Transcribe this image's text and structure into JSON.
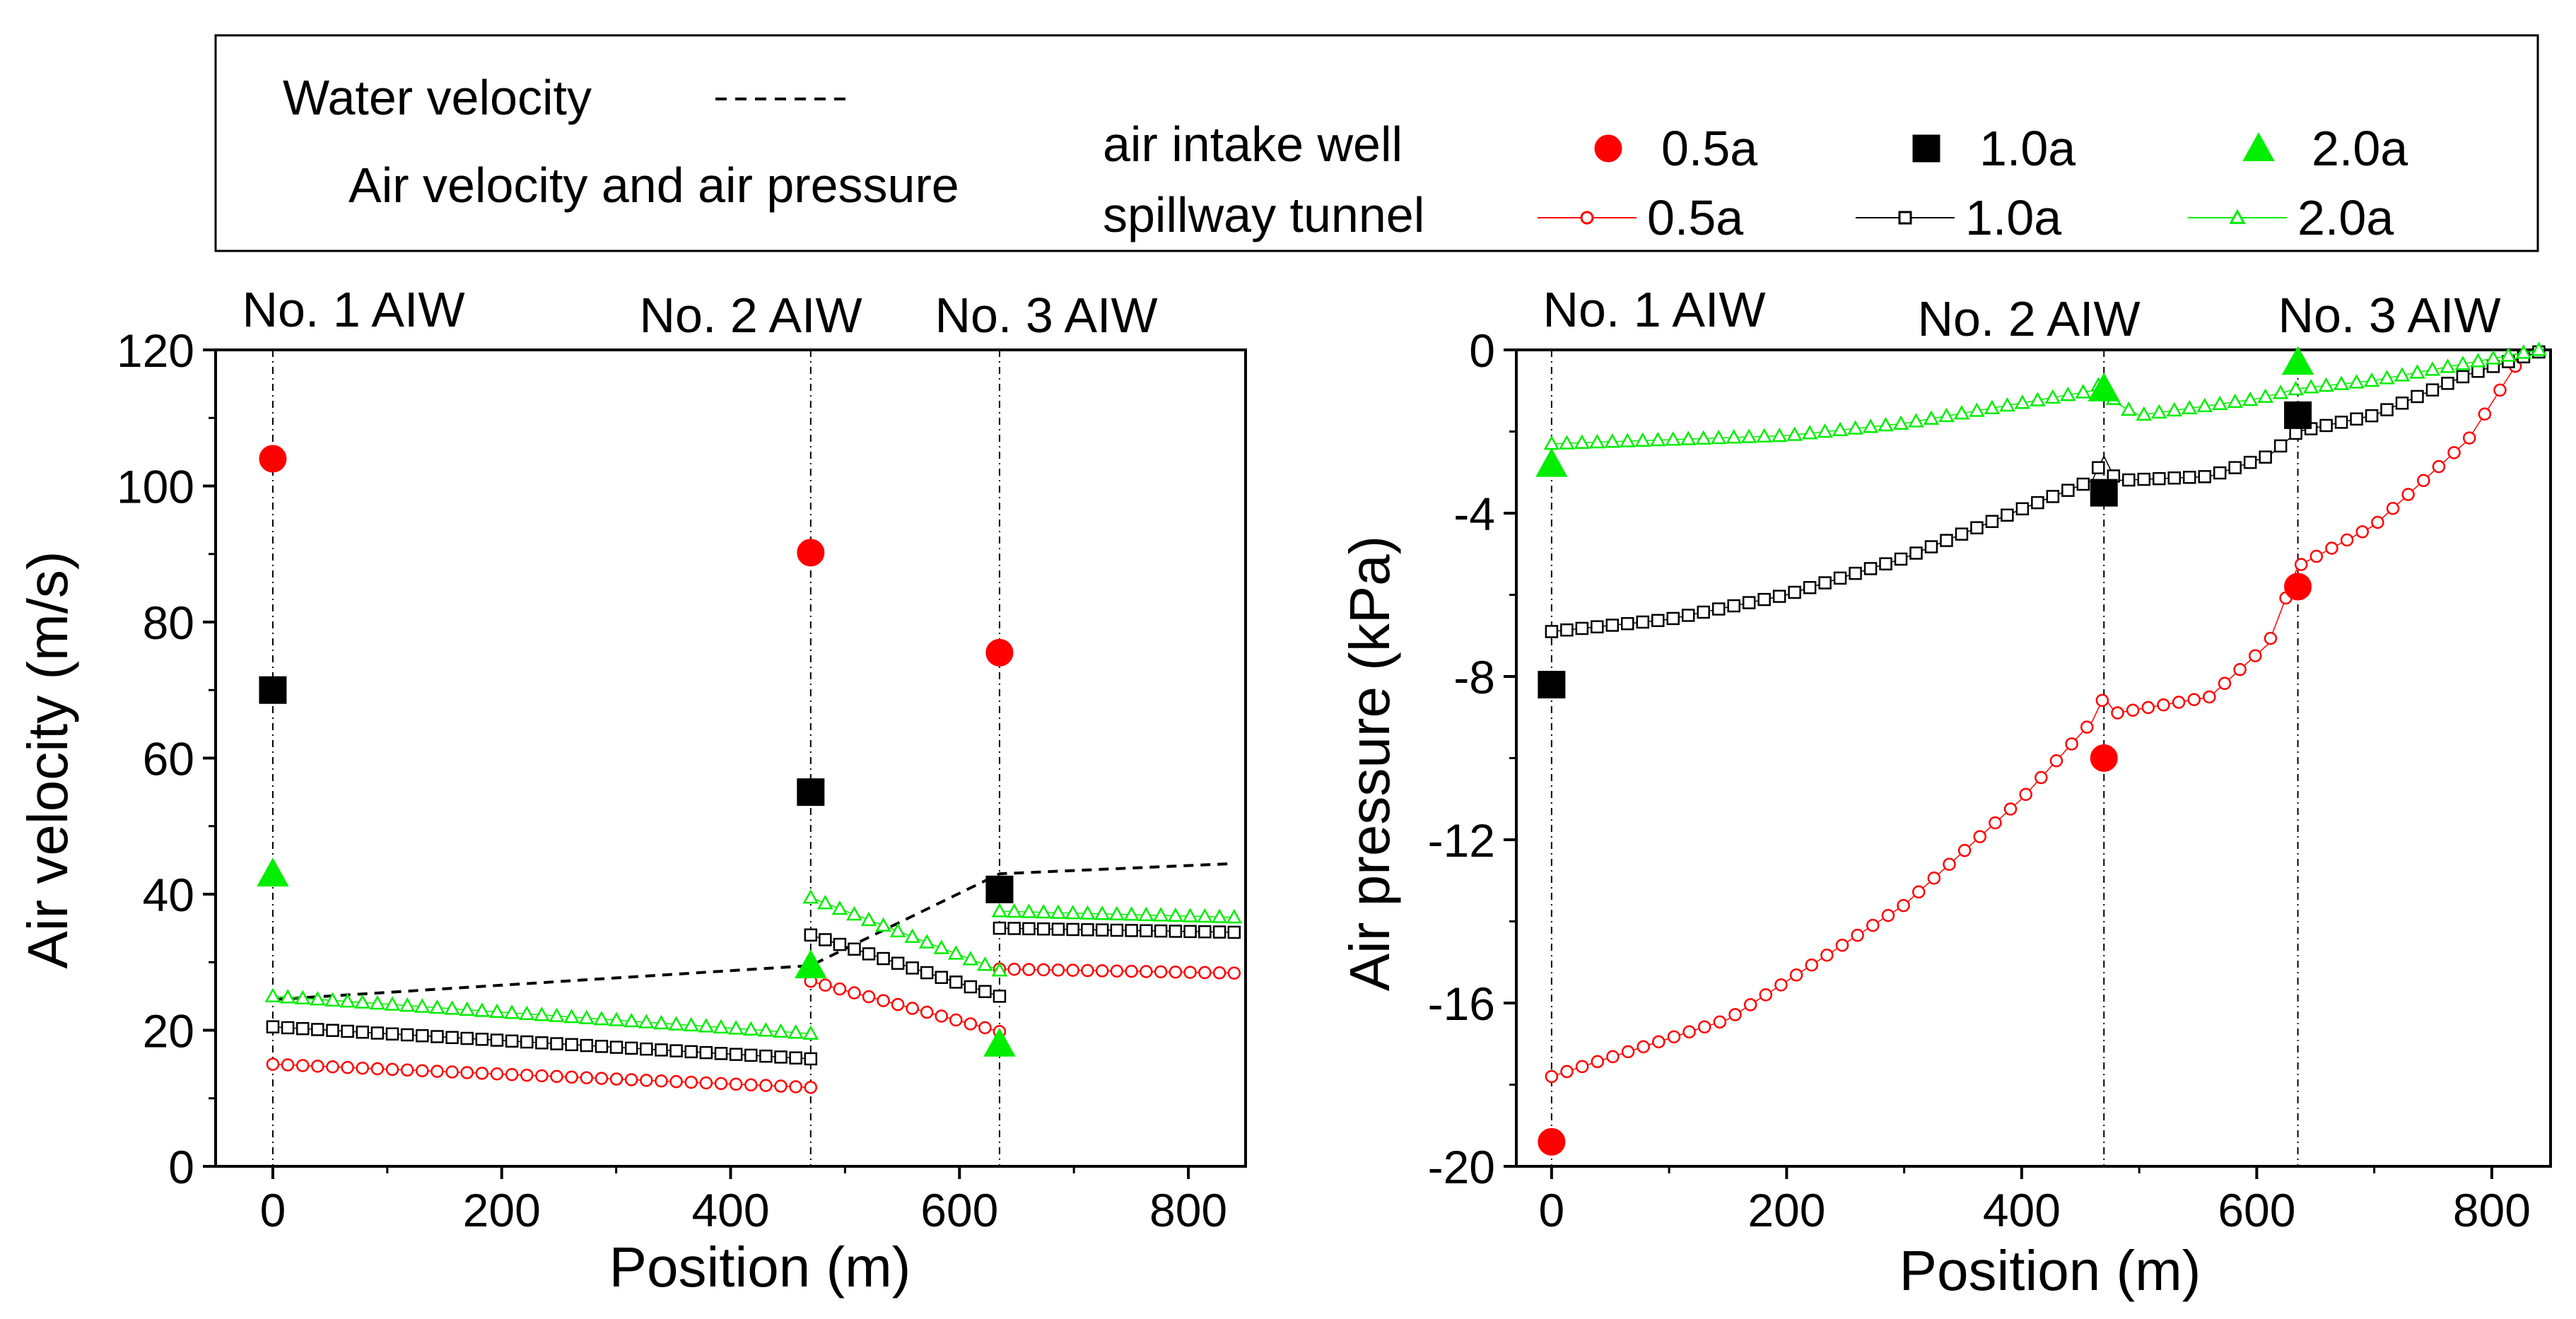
{
  "legend": {
    "water_label": "Water velocity",
    "air_label": "Air velocity and air pressure",
    "row_well": "air intake well",
    "row_tunnel": "spillway tunnel",
    "items": [
      "0.5a",
      "1.0a",
      "2.0a"
    ]
  },
  "colors": {
    "c05": "#ff0000",
    "c10": "#000000",
    "c20": "#00ee00",
    "water": "#000000"
  },
  "chart_data": [
    {
      "type": "scatter",
      "xlabel": "Position (m)",
      "ylabel": "Air velocity (m/s)",
      "xlim": [
        -50,
        850
      ],
      "ylim": [
        0,
        120
      ],
      "xticks": [
        0,
        200,
        400,
        600,
        800
      ],
      "yticks": [
        0,
        20,
        40,
        60,
        80,
        100,
        120
      ],
      "aiw_positions": [
        0,
        470,
        635
      ],
      "aiw_labels": [
        "No. 1 AIW",
        "No. 2 AIW",
        "No. 3 AIW"
      ],
      "water_velocity": {
        "x": [
          0,
          470,
          635,
          840
        ],
        "y": [
          24.5,
          29.5,
          43,
          44.5
        ]
      },
      "well": [
        {
          "name": "0.5a",
          "x": [
            0,
            470,
            635
          ],
          "y": [
            104,
            90.2,
            75.5
          ]
        },
        {
          "name": "1.0a",
          "x": [
            0,
            470,
            635
          ],
          "y": [
            70,
            55,
            40.7
          ]
        },
        {
          "name": "2.0a",
          "x": [
            0,
            470,
            635
          ],
          "y": [
            43,
            29.5,
            18
          ]
        }
      ],
      "tunnel": [
        {
          "name": "0.5a",
          "segments": [
            {
              "x": [
                0,
                470
              ],
              "y": [
                15,
                11.6
              ]
            },
            {
              "x": [
                470,
                635
              ],
              "y": [
                27.2,
                19.8
              ]
            },
            {
              "x": [
                635,
                840
              ],
              "y": [
                29,
                28.4
              ]
            }
          ]
        },
        {
          "name": "1.0a",
          "segments": [
            {
              "x": [
                0,
                470
              ],
              "y": [
                20.5,
                15.8
              ]
            },
            {
              "x": [
                470,
                635
              ],
              "y": [
                34,
                25
              ]
            },
            {
              "x": [
                635,
                840
              ],
              "y": [
                35,
                34.4
              ]
            }
          ]
        },
        {
          "name": "2.0a",
          "segments": [
            {
              "x": [
                0,
                470
              ],
              "y": [
                25,
                19.5
              ]
            },
            {
              "x": [
                470,
                635
              ],
              "y": [
                39.5,
                28.8
              ]
            },
            {
              "x": [
                635,
                840
              ],
              "y": [
                37.5,
                36.6
              ]
            }
          ]
        }
      ]
    },
    {
      "type": "scatter",
      "xlabel": "Position (m)",
      "ylabel": "Air pressure (kPa)",
      "xlim": [
        -30,
        850
      ],
      "ylim": [
        -20,
        0
      ],
      "xticks": [
        0,
        200,
        400,
        600,
        800
      ],
      "yticks": [
        -20,
        -16,
        -12,
        -8,
        -4,
        0
      ],
      "aiw_positions": [
        0,
        470,
        635
      ],
      "aiw_labels": [
        "No. 1 AIW",
        "No. 2 AIW",
        "No. 3 AIW"
      ],
      "well": [
        {
          "name": "0.5a",
          "x": [
            0,
            470,
            635
          ],
          "y": [
            -19.4,
            -10,
            -5.8
          ]
        },
        {
          "name": "1.0a",
          "x": [
            0,
            470,
            635
          ],
          "y": [
            -8.2,
            -3.5,
            -1.6
          ]
        },
        {
          "name": "2.0a",
          "x": [
            0,
            470,
            635
          ],
          "y": [
            -2.8,
            -0.95,
            -0.3
          ]
        }
      ],
      "tunnel": [
        {
          "name": "0.5a",
          "x": [
            0,
            150,
            300,
            400,
            460,
            470,
            480,
            560,
            610,
            635,
            700,
            780,
            820
          ],
          "y": [
            -17.8,
            -16.4,
            -13.6,
            -11,
            -9.1,
            -8.5,
            -8.9,
            -8.5,
            -7.2,
            -5.3,
            -4.3,
            -2.2,
            -0.4
          ]
        },
        {
          "name": "1.0a",
          "x": [
            0,
            100,
            200,
            300,
            400,
            460,
            470,
            480,
            560,
            610,
            635,
            700,
            780,
            840
          ],
          "y": [
            -6.9,
            -6.6,
            -6,
            -5.1,
            -3.9,
            -3.2,
            -2.6,
            -3.2,
            -3.1,
            -2.6,
            -2,
            -1.6,
            -0.6,
            -0.05
          ]
        },
        {
          "name": "2.0a",
          "x": [
            0,
            200,
            300,
            400,
            460,
            470,
            480,
            500,
            600,
            635,
            700,
            840
          ],
          "y": [
            -2.3,
            -2.1,
            -1.8,
            -1.3,
            -1,
            -0.75,
            -1.3,
            -1.6,
            -1.2,
            -0.95,
            -0.75,
            0
          ]
        }
      ]
    }
  ]
}
